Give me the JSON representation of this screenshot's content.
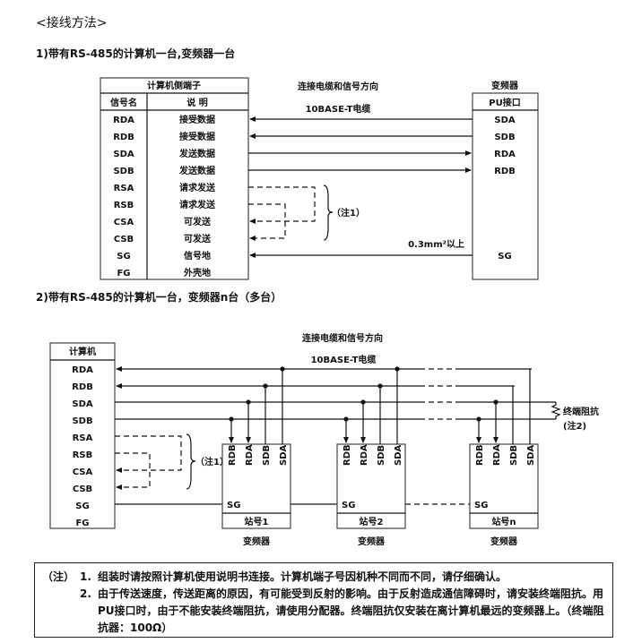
{
  "title": "<接线方法>",
  "section1": {
    "heading": "1)带有RS-485的计算机一台,变频器一台",
    "computer_header": "计算机侧端子",
    "col_signal": "信号名",
    "col_desc": "说 明",
    "rows": [
      {
        "signal": "RDA",
        "desc": "接受数据"
      },
      {
        "signal": "RDB",
        "desc": "接受数据"
      },
      {
        "signal": "SDA",
        "desc": "发送数据"
      },
      {
        "signal": "SDB",
        "desc": "发送数据"
      },
      {
        "signal": "RSA",
        "desc": "请求发送"
      },
      {
        "signal": "RSB",
        "desc": "请求发送"
      },
      {
        "signal": "CSA",
        "desc": "可发送"
      },
      {
        "signal": "CSB",
        "desc": "可发送"
      },
      {
        "signal": "SG",
        "desc": "信号地"
      },
      {
        "signal": "FG",
        "desc": "外壳地"
      }
    ],
    "cable_title": "连接电缆和信号方向",
    "cable_type": "10BASE-T电缆",
    "inverter_label": "变频器",
    "pu_header": "PU接口",
    "pu_pins": [
      "SDA",
      "SDB",
      "RDA",
      "RDB",
      "SG"
    ],
    "note_ref": "（注1）",
    "wire_size": "0.3mm²以上"
  },
  "section2": {
    "heading": "2)带有RS-485的计算机一台，变频器n台（多台）",
    "computer_header": "计算机",
    "signals": [
      "RDA",
      "RDB",
      "SDA",
      "SDB",
      "RSA",
      "RSB",
      "CSA",
      "CSB",
      "SG",
      "FG"
    ],
    "cable_title": "连接电缆和信号方向",
    "cable_type": "10BASE-T电缆",
    "note_ref": "（注1）",
    "terminator": "终端阻抗",
    "terminator_note": "(注2)",
    "station_pins": [
      "RDB",
      "RDA",
      "SDB",
      "SDA"
    ],
    "sg_label": "SG",
    "stations": [
      {
        "label": "站号1",
        "device": "变频器"
      },
      {
        "label": "站号2",
        "device": "变频器"
      },
      {
        "label": "站号n",
        "device": "变频器"
      }
    ]
  },
  "notes": {
    "label": "（注）",
    "items": [
      {
        "num": "1.",
        "text": "组装时请按照计算机使用说明书连接。计算机端子号因机种不同而不同，请仔细确认。"
      },
      {
        "num": "2.",
        "text": "由于传送速度，传送距离的原因，有可能受到反射的影响。由于反射造成通信障碍时，请安装终端阻抗。用PU接口时，由于不能安装终端阻抗，请使用分配器。终端阻抗仅安装在离计算机最远的变频器上。（终端阻抗器：100Ω）"
      }
    ]
  }
}
